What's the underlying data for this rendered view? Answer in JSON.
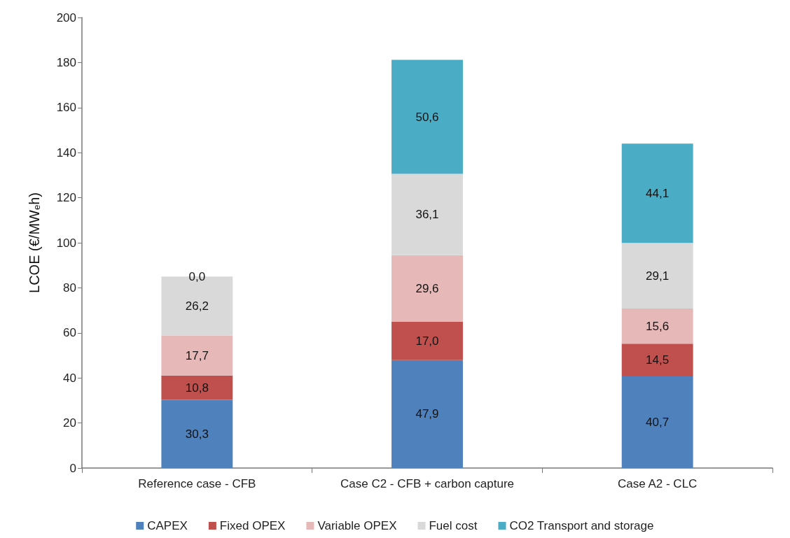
{
  "chart_data": {
    "type": "bar",
    "stacked": true,
    "ylabel": "LCOE (€/MW$_{e}$h)",
    "categories": [
      "Reference case - CFB",
      "Case C2 - CFB + carbon capture",
      "Case A2 - CLC"
    ],
    "series": [
      {
        "name": "CAPEX",
        "color": "#4f81bd",
        "values": [
          30.3,
          47.9,
          40.7
        ],
        "value_labels": [
          "30,3",
          "47,9",
          "40,7"
        ]
      },
      {
        "name": "Fixed OPEX",
        "color": "#c0504d",
        "values": [
          10.8,
          17.0,
          14.5
        ],
        "value_labels": [
          "10,8",
          "17,0",
          "14,5"
        ]
      },
      {
        "name": "Variable OPEX",
        "color": "#e6b9b8",
        "values": [
          17.7,
          29.6,
          15.6
        ],
        "value_labels": [
          "17,7",
          "29,6",
          "15,6"
        ]
      },
      {
        "name": "Fuel cost",
        "color": "#d9d9d9",
        "values": [
          26.2,
          36.1,
          29.1
        ],
        "value_labels": [
          "26,2",
          "36,1",
          "29,1"
        ]
      },
      {
        "name": "CO2 Transport and storage",
        "color": "#4bacc6",
        "values": [
          0.0,
          50.6,
          44.1
        ],
        "value_labels": [
          "0,0",
          "50,6",
          "44,1"
        ]
      }
    ],
    "ylim": [
      0,
      200
    ],
    "yticks": [
      0,
      20,
      40,
      60,
      80,
      100,
      120,
      140,
      160,
      180,
      200
    ],
    "grid": false,
    "legend": "bottom"
  }
}
